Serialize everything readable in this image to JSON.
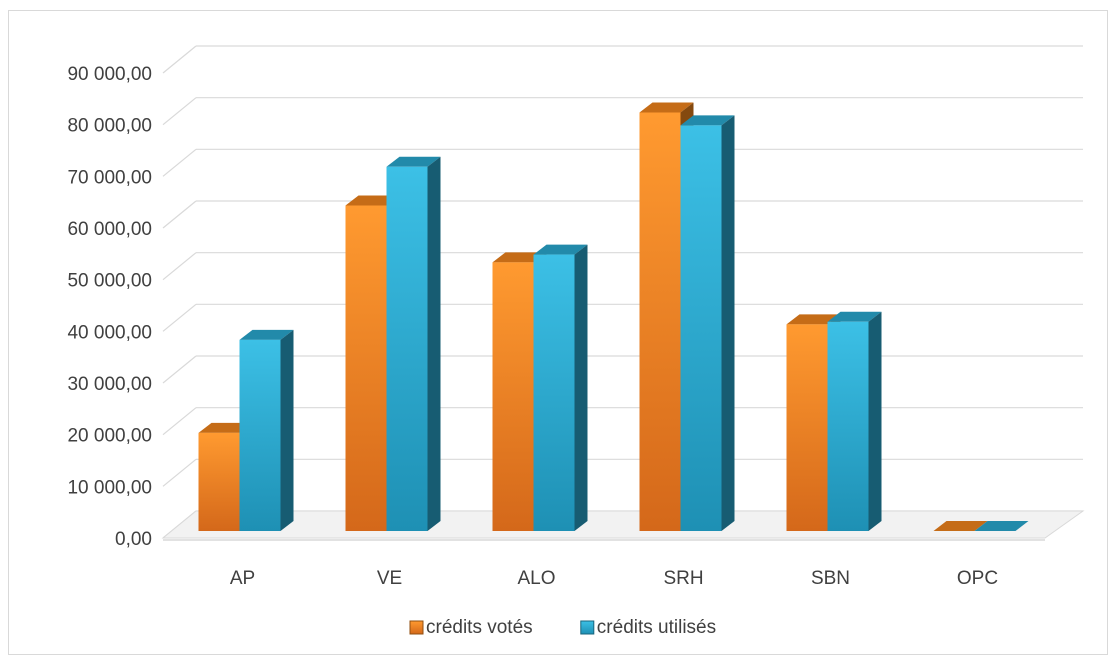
{
  "chart_data": {
    "type": "bar",
    "style": "3d-clustered-column",
    "categories": [
      "AP",
      "VE",
      "ALO",
      "SRH",
      "SBN",
      "OPC"
    ],
    "series": [
      {
        "name": "crédits votés",
        "color": "#f0841c",
        "values": [
          19000,
          63000,
          52000,
          81000,
          40000,
          0
        ]
      },
      {
        "name": "crédits utilisés",
        "color": "#2aa8cf",
        "values": [
          37000,
          70500,
          53500,
          78500,
          40500,
          0
        ]
      }
    ],
    "yticks": [
      "0,00",
      "10 000,00",
      "20 000,00",
      "30 000,00",
      "40 000,00",
      "50 000,00",
      "60 000,00",
      "70 000,00",
      "80 000,00",
      "90 000,00"
    ],
    "ylim": [
      0,
      90000
    ],
    "title": "",
    "xlabel": "",
    "ylabel": "",
    "grid": true,
    "legend_position": "bottom"
  }
}
